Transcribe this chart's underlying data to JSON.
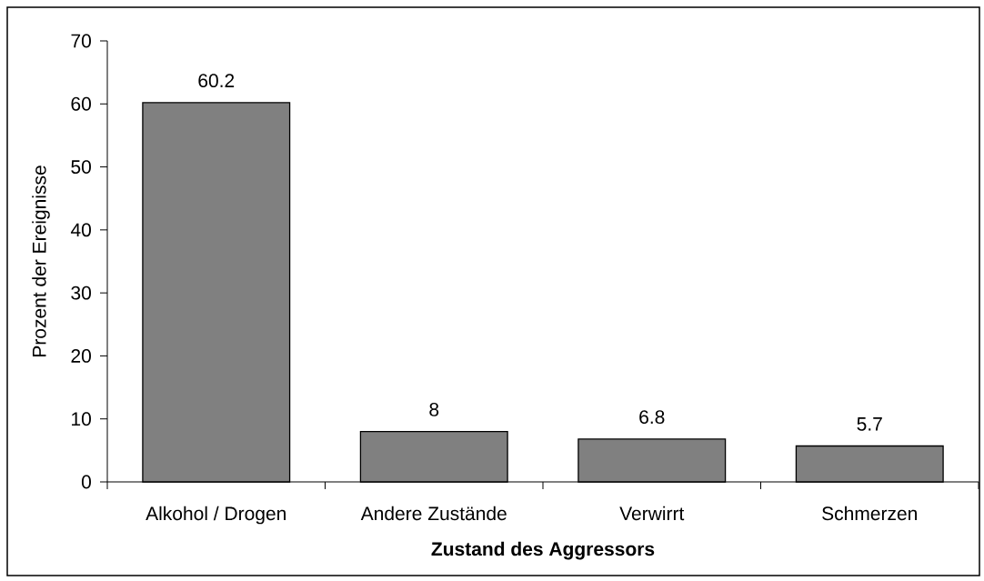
{
  "chart_data": {
    "type": "bar",
    "categories": [
      "Alkohol / Drogen",
      "Andere Zustände",
      "Verwirrt",
      "Schmerzen"
    ],
    "values": [
      60.2,
      8,
      6.8,
      5.7
    ],
    "color": "#808080",
    "xlabel": "Zustand des Aggressors",
    "ylabel": "Prozent der Ereignisse",
    "ylim": [
      0,
      70
    ],
    "yticks": [
      0,
      10,
      20,
      30,
      40,
      50,
      60,
      70
    ],
    "data_labels": true
  }
}
